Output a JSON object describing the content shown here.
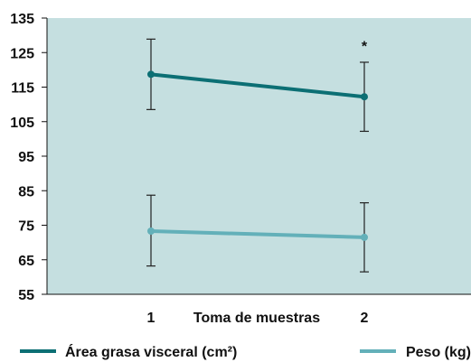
{
  "chart_data": {
    "type": "line",
    "title": "",
    "xlabel": "Toma de muestras",
    "ylabel": "",
    "categories": [
      "1",
      "2"
    ],
    "ylim": [
      55,
      135
    ],
    "yticks": [
      "135",
      "125",
      "115",
      "105",
      "95",
      "85",
      "75",
      "65",
      "55"
    ],
    "grid": false,
    "legend_position": "bottom",
    "plot_background": "#c5dfe0",
    "series": [
      {
        "name": "Área grasa visceral (cm²)",
        "color": "#0c6f74",
        "values": [
          118.7,
          112.2
        ],
        "error_low": [
          108.5,
          102.2
        ],
        "error_high": [
          128.9,
          122.2
        ]
      },
      {
        "name": "Peso (kg)",
        "color": "#63b0b9",
        "values": [
          73.3,
          71.5
        ],
        "error_low": [
          63.2,
          61.5
        ],
        "error_high": [
          83.7,
          81.5
        ]
      }
    ],
    "annotations": [
      {
        "text": "*",
        "x": "2",
        "y": 125
      }
    ]
  }
}
